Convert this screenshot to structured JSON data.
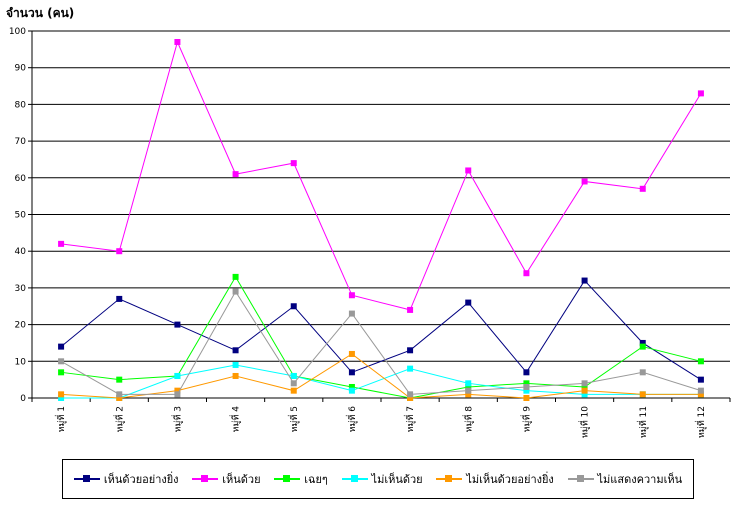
{
  "chart_data": {
    "type": "line",
    "ylabel": "จำนวน (คน)",
    "xlabel": "",
    "title": "",
    "ylim": [
      0,
      100
    ],
    "yticks": [
      0,
      10,
      20,
      30,
      40,
      50,
      60,
      70,
      80,
      90,
      100
    ],
    "categories": [
      "หมู่ที่ 1",
      "หมู่ที่ 2",
      "หมู่ที่ 3",
      "หมู่ที่ 4",
      "หมู่ที่ 5",
      "หมู่ที่ 6",
      "หมู่ที่ 7",
      "หมู่ที่ 8",
      "หมู่ที่ 9",
      "หมู่ที่ 10",
      "หมู่ที่ 11",
      "หมู่ที่ 12"
    ],
    "grid": true,
    "legend_position": "bottom",
    "series": [
      {
        "name": "เห็นด้วยอย่างยิ่ง",
        "color": "#000080",
        "values": [
          14,
          27,
          20,
          13,
          25,
          7,
          13,
          26,
          7,
          32,
          15,
          5
        ]
      },
      {
        "name": "เห็นด้วย",
        "color": "#FF00FF",
        "values": [
          42,
          40,
          97,
          61,
          64,
          28,
          24,
          62,
          34,
          59,
          57,
          83
        ]
      },
      {
        "name": "เฉยๆ",
        "color": "#00FF00",
        "values": [
          7,
          5,
          6,
          33,
          6,
          3,
          0,
          3,
          4,
          3,
          14,
          10
        ]
      },
      {
        "name": "ไม่เห็นด้วย",
        "color": "#00FFFF",
        "values": [
          0,
          0,
          6,
          9,
          6,
          2,
          8,
          4,
          2,
          1,
          1,
          1
        ]
      },
      {
        "name": "ไม่เห็นด้วยอย่างยิ่ง",
        "color": "#FF9900",
        "values": [
          1,
          0,
          2,
          6,
          2,
          12,
          0,
          1,
          0,
          2,
          1,
          1
        ]
      },
      {
        "name": "ไม่แสดงความเห็น",
        "color": "#999999",
        "values": [
          10,
          1,
          1,
          29,
          4,
          23,
          1,
          2,
          3,
          4,
          7,
          2
        ]
      }
    ]
  }
}
